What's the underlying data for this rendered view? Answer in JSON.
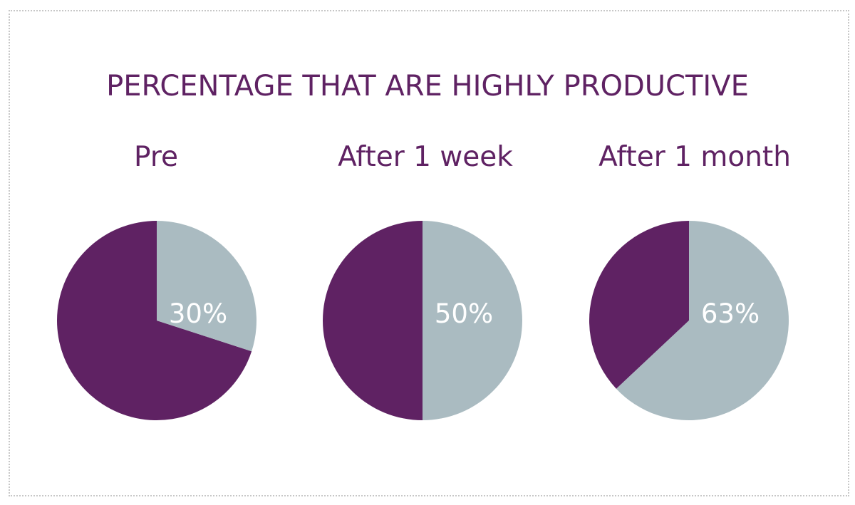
{
  "chart_data": {
    "type": "pie",
    "title": "PERCENTAGE THAT ARE HIGHLY PRODUCTIVE",
    "colors": {
      "highlight": "#aabbc1",
      "remainder": "#5f2263",
      "text": "#5f2263",
      "label": "#ffffff"
    },
    "charts": [
      {
        "label": "Pre",
        "value": 30,
        "value_label": "30%"
      },
      {
        "label": "After 1 week",
        "value": 50,
        "value_label": "50%"
      },
      {
        "label": "After 1 month",
        "value": 63,
        "value_label": "63%"
      }
    ]
  }
}
